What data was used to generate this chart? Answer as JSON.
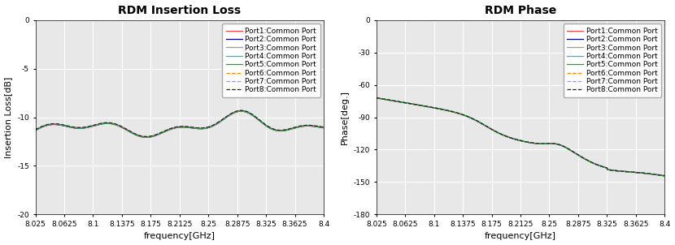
{
  "title_loss": "RDM Insertion Loss",
  "title_phase": "RDM Phase",
  "xlabel": "frequency[GHz]",
  "ylabel_loss": "Insertion Loss[dB]",
  "ylabel_phase": "Phase[deg.]",
  "freq_start": 8.025,
  "freq_end": 8.4,
  "freq_points": 500,
  "xlim": [
    8.025,
    8.4
  ],
  "ylim_loss": [
    -20,
    0
  ],
  "ylim_phase": [
    -180,
    0
  ],
  "yticks_loss": [
    0,
    -5,
    -10,
    -15,
    -20
  ],
  "yticks_phase": [
    0,
    -30,
    -60,
    -90,
    -120,
    -150,
    -180
  ],
  "xticks": [
    8.025,
    8.0625,
    8.1,
    8.1375,
    8.175,
    8.2125,
    8.25,
    8.2875,
    8.325,
    8.3625,
    8.4
  ],
  "xtick_labels": [
    "8.025",
    "8.0625",
    "8.1",
    "8.1375",
    "8.175",
    "8.2125",
    "8.25",
    "8.2875",
    "8.325",
    "8.3625",
    "8.4"
  ],
  "port_colors": [
    "#FF4444",
    "#000099",
    "#999999",
    "#00CCCC",
    "#00BB00",
    "#FF8800",
    "#9999DD",
    "#222222"
  ],
  "port_linestyles": [
    "-",
    "-",
    "-",
    "-",
    "-",
    "--",
    "--",
    "--"
  ],
  "port_labels": [
    "Port1:Common Port",
    "Port2:Common Port",
    "Port3:Common Port",
    "Port4:Common Port",
    "Port5:Common Port",
    "Port6:Common Port",
    "Port7:Common Port",
    "Port8:Common Port"
  ],
  "legend_fontsize": 6.5,
  "title_fontsize": 10,
  "tick_fontsize": 6.5,
  "label_fontsize": 8,
  "background_color": "#E8E8E8",
  "grid_color": "#FFFFFF",
  "fig_color": "#FFFFFF",
  "spine_color": "#000000"
}
